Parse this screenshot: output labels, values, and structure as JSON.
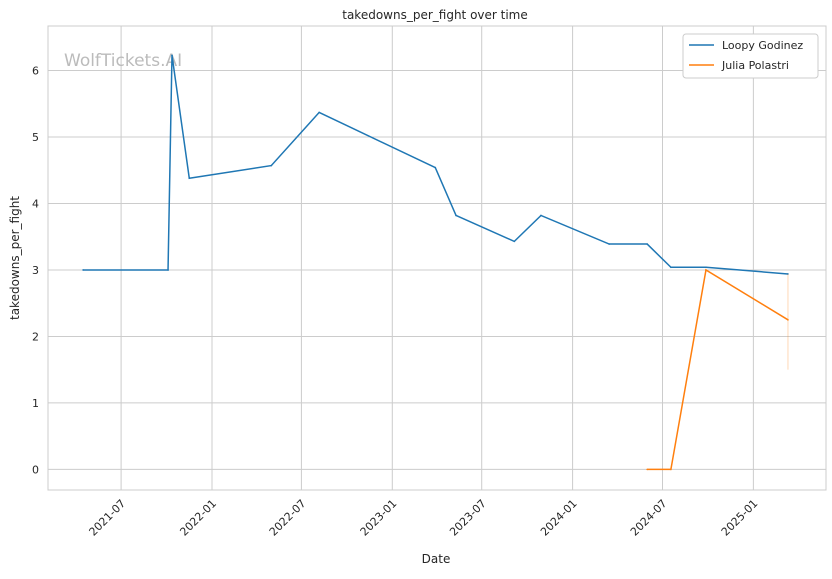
{
  "chart_data": {
    "type": "line",
    "title": "takedowns_per_fight over time",
    "xlabel": "Date",
    "ylabel": "takedowns_per_fight",
    "watermark": "WolfTickets.AI",
    "xlim": [
      "2021-02-03",
      "2025-05-28"
    ],
    "ylim": [
      -0.31,
      6.67
    ],
    "grid": true,
    "legend_position": "top-right",
    "x_ticks": [
      {
        "date": "2021-07-01",
        "label": "2021-07"
      },
      {
        "date": "2022-01-01",
        "label": "2022-01"
      },
      {
        "date": "2022-07-01",
        "label": "2022-07"
      },
      {
        "date": "2023-01-01",
        "label": "2023-01"
      },
      {
        "date": "2023-07-01",
        "label": "2023-07"
      },
      {
        "date": "2024-01-01",
        "label": "2024-01"
      },
      {
        "date": "2024-07-01",
        "label": "2024-07"
      },
      {
        "date": "2025-01-01",
        "label": "2025-01"
      }
    ],
    "y_ticks": [
      {
        "value": 0,
        "label": "0"
      },
      {
        "value": 1,
        "label": "1"
      },
      {
        "value": 2,
        "label": "2"
      },
      {
        "value": 3,
        "label": "3"
      },
      {
        "value": 4,
        "label": "4"
      },
      {
        "value": 5,
        "label": "5"
      },
      {
        "value": 6,
        "label": "6"
      }
    ],
    "series": [
      {
        "name": "Loopy Godinez",
        "color": "#1f77b4",
        "points": [
          [
            "2021-04-15",
            3.0
          ],
          [
            "2021-10-04",
            3.0
          ],
          [
            "2021-10-12",
            6.23
          ],
          [
            "2021-11-16",
            4.38
          ],
          [
            "2022-05-01",
            4.57
          ],
          [
            "2022-08-06",
            5.37
          ],
          [
            "2023-03-29",
            4.54
          ],
          [
            "2023-05-10",
            3.82
          ],
          [
            "2023-09-05",
            3.43
          ],
          [
            "2023-10-29",
            3.82
          ],
          [
            "2024-03-15",
            3.39
          ],
          [
            "2024-05-31",
            3.39
          ],
          [
            "2024-07-18",
            3.04
          ],
          [
            "2024-09-27",
            3.04
          ],
          [
            "2025-03-12",
            2.94
          ]
        ]
      },
      {
        "name": "Julia Polastri",
        "color": "#ff7f0e",
        "points": [
          [
            "2024-05-31",
            0.0
          ],
          [
            "2024-07-18",
            0.0
          ],
          [
            "2024-09-27",
            3.0
          ],
          [
            "2025-03-12",
            2.25
          ]
        ],
        "band": {
          "date": "2025-03-12",
          "low": 1.5,
          "high": 2.94
        }
      }
    ]
  }
}
